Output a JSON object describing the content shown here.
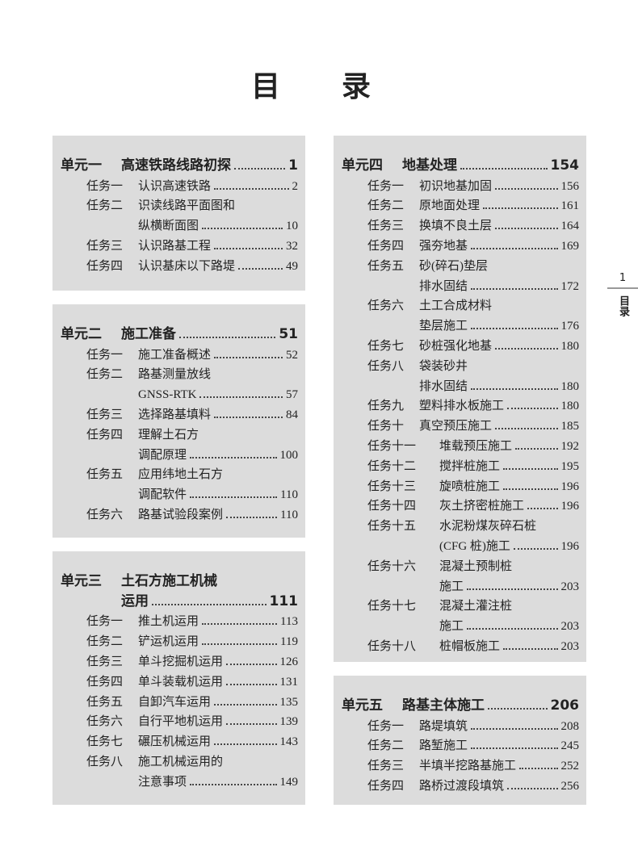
{
  "header": {
    "title": "目　录"
  },
  "side_tab": {
    "page": "1",
    "label": "目录"
  },
  "units": [
    {
      "label": "单元一",
      "title": [
        "高速铁路线路初探"
      ],
      "page": "1",
      "tasks": [
        {
          "label": "任务一",
          "lines": [
            "认识高速铁路"
          ],
          "page": "2"
        },
        {
          "label": "任务二",
          "lines": [
            "识读线路平面图和",
            "纵横断面图"
          ],
          "page": "10"
        },
        {
          "label": "任务三",
          "lines": [
            "认识路基工程"
          ],
          "page": "32"
        },
        {
          "label": "任务四",
          "lines": [
            "认识基床以下路堤"
          ],
          "page": "49"
        }
      ]
    },
    {
      "label": "单元二",
      "title": [
        "施工准备"
      ],
      "page": "51",
      "tasks": [
        {
          "label": "任务一",
          "lines": [
            "施工准备概述"
          ],
          "page": "52"
        },
        {
          "label": "任务二",
          "lines": [
            "路基测量放线",
            "GNSS-RTK"
          ],
          "page": "57"
        },
        {
          "label": "任务三",
          "lines": [
            "选择路基填料"
          ],
          "page": "84"
        },
        {
          "label": "任务四",
          "lines": [
            "理解土石方",
            "调配原理"
          ],
          "page": "100"
        },
        {
          "label": "任务五",
          "lines": [
            "应用纬地土石方",
            "调配软件"
          ],
          "page": "110"
        },
        {
          "label": "任务六",
          "lines": [
            "路基试验段案例"
          ],
          "page": "110"
        }
      ]
    },
    {
      "label": "单元三",
      "title": [
        "土石方施工机械",
        "运用"
      ],
      "page": "111",
      "tasks": [
        {
          "label": "任务一",
          "lines": [
            "推土机运用"
          ],
          "page": "113"
        },
        {
          "label": "任务二",
          "lines": [
            "铲运机运用"
          ],
          "page": "119"
        },
        {
          "label": "任务三",
          "lines": [
            "单斗挖掘机运用"
          ],
          "page": "126"
        },
        {
          "label": "任务四",
          "lines": [
            "单斗装载机运用"
          ],
          "page": "131"
        },
        {
          "label": "任务五",
          "lines": [
            "自卸汽车运用"
          ],
          "page": "135"
        },
        {
          "label": "任务六",
          "lines": [
            "自行平地机运用"
          ],
          "page": "139"
        },
        {
          "label": "任务七",
          "lines": [
            "碾压机械运用"
          ],
          "page": "143"
        },
        {
          "label": "任务八",
          "lines": [
            "施工机械运用的",
            "注意事项"
          ],
          "page": "149"
        }
      ]
    },
    {
      "label": "单元四",
      "title": [
        "地基处理"
      ],
      "page": "154",
      "tasks": [
        {
          "label": "任务一",
          "lines": [
            "初识地基加固"
          ],
          "page": "156"
        },
        {
          "label": "任务二",
          "lines": [
            "原地面处理"
          ],
          "page": "161"
        },
        {
          "label": "任务三",
          "lines": [
            "换填不良土层"
          ],
          "page": "164"
        },
        {
          "label": "任务四",
          "lines": [
            "强夯地基"
          ],
          "page": "169"
        },
        {
          "label": "任务五",
          "lines": [
            "砂(碎石)垫层",
            "排水固结"
          ],
          "page": "172"
        },
        {
          "label": "任务六",
          "lines": [
            "土工合成材料",
            "垫层施工"
          ],
          "page": "176"
        },
        {
          "label": "任务七",
          "lines": [
            "砂桩强化地基"
          ],
          "page": "180"
        },
        {
          "label": "任务八",
          "lines": [
            "袋装砂井",
            "排水固结"
          ],
          "page": "180"
        },
        {
          "label": "任务九",
          "lines": [
            "塑料排水板施工"
          ],
          "page": "180"
        },
        {
          "label": "任务十",
          "lines": [
            "真空预压施工"
          ],
          "page": "185"
        },
        {
          "label": "任务十一",
          "lines": [
            "堆载预压施工"
          ],
          "page": "192"
        },
        {
          "label": "任务十二",
          "lines": [
            "搅拌桩施工"
          ],
          "page": "195"
        },
        {
          "label": "任务十三",
          "lines": [
            "旋喷桩施工"
          ],
          "page": "196"
        },
        {
          "label": "任务十四",
          "lines": [
            "灰土挤密桩施工"
          ],
          "page": "196"
        },
        {
          "label": "任务十五",
          "lines": [
            "水泥粉煤灰碎石桩",
            "(CFG 桩)施工"
          ],
          "page": "196"
        },
        {
          "label": "任务十六",
          "lines": [
            "混凝土预制桩",
            "施工"
          ],
          "page": "203"
        },
        {
          "label": "任务十七",
          "lines": [
            "混凝土灌注桩",
            "施工"
          ],
          "page": "203"
        },
        {
          "label": "任务十八",
          "lines": [
            "桩帽板施工"
          ],
          "page": "203"
        }
      ]
    },
    {
      "label": "单元五",
      "title": [
        "路基主体施工"
      ],
      "page": "206",
      "tasks": [
        {
          "label": "任务一",
          "lines": [
            "路堤填筑"
          ],
          "page": "208"
        },
        {
          "label": "任务二",
          "lines": [
            "路堑施工"
          ],
          "page": "245"
        },
        {
          "label": "任务三",
          "lines": [
            "半填半挖路基施工"
          ],
          "page": "252"
        },
        {
          "label": "任务四",
          "lines": [
            "路桥过渡段填筑"
          ],
          "page": "256"
        }
      ]
    }
  ]
}
